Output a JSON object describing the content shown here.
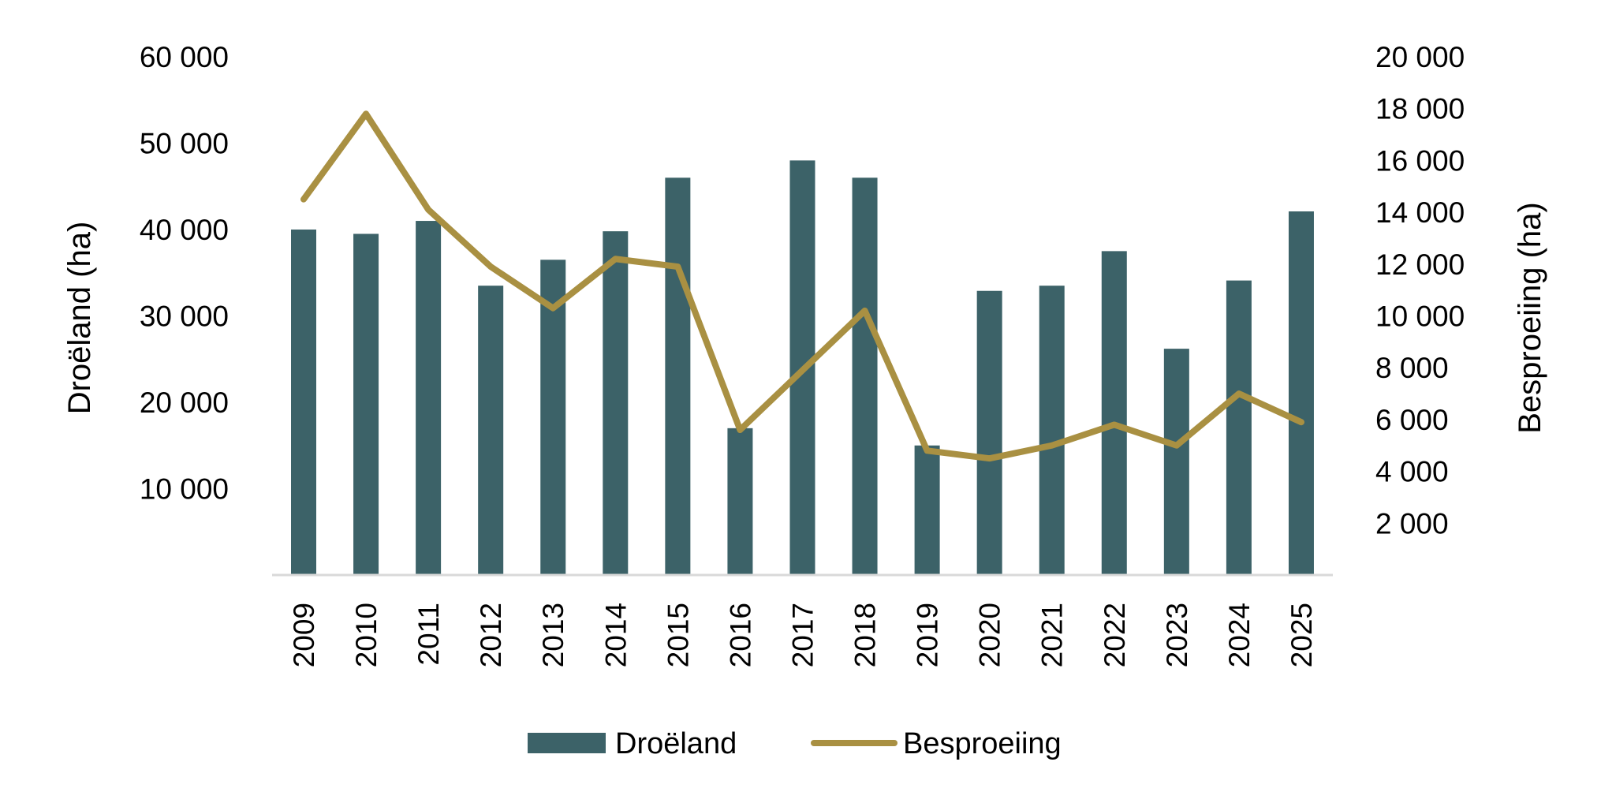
{
  "chart_data": {
    "type": "bar",
    "title": "",
    "categories": [
      "2009",
      "2010",
      "2011",
      "2012",
      "2013",
      "2014",
      "2015",
      "2016",
      "2017",
      "2018",
      "2019",
      "2020",
      "2021",
      "2022",
      "2023",
      "2024",
      "2025"
    ],
    "series": [
      {
        "name": "Droëland",
        "type": "bar",
        "axis": "left",
        "color": "#3c6268",
        "values": [
          40000,
          39500,
          41000,
          33500,
          36500,
          39800,
          46000,
          17000,
          48000,
          46000,
          15000,
          32900,
          33500,
          37500,
          26200,
          34100,
          42100
        ]
      },
      {
        "name": "Besproeiing",
        "type": "line",
        "axis": "right",
        "color": "#a99042",
        "values": [
          14500,
          17800,
          14100,
          11900,
          10300,
          12200,
          11900,
          5600,
          7900,
          10200,
          4800,
          4500,
          5000,
          5800,
          5000,
          7000,
          5900
        ]
      }
    ],
    "ylabel": "Droëland (ha)",
    "ylabel_right": "Besproeiing (ha)",
    "ylim": [
      0,
      60000
    ],
    "ylim_right": [
      0,
      20000
    ],
    "yticks": [
      "10 000",
      "20 000",
      "30 000",
      "40 000",
      "50 000",
      "60 000"
    ],
    "yticks_values": [
      10000,
      20000,
      30000,
      40000,
      50000,
      60000
    ],
    "yticks_right": [
      "2 000",
      "4 000",
      "6 000",
      "8 000",
      "10 000",
      "12 000",
      "14 000",
      "16 000",
      "18 000",
      "20 000"
    ],
    "yticks_right_values": [
      2000,
      4000,
      6000,
      8000,
      10000,
      12000,
      14000,
      16000,
      18000,
      20000
    ],
    "grid": false,
    "legend": "bottom",
    "axis_color": "#d9d9d9"
  }
}
